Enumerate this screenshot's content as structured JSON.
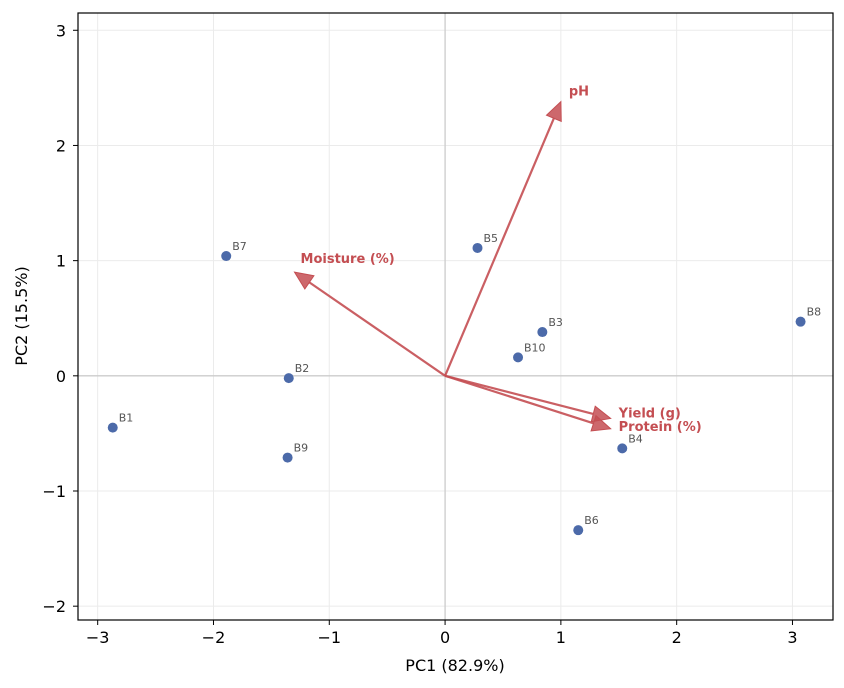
{
  "chart_data": {
    "type": "scatter",
    "title": "",
    "xlabel": "PC1 (82.9%)",
    "ylabel": "PC2 (15.5%)",
    "xlim": [
      -3.17,
      3.35
    ],
    "ylim": [
      -2.12,
      3.15
    ],
    "xticks": [
      -3,
      -2,
      -1,
      0,
      1,
      2,
      3
    ],
    "yticks": [
      -2,
      -1,
      0,
      1,
      2,
      3
    ],
    "grid": true,
    "point_color": "#4c6aa9",
    "vector_color": "#c44e52",
    "points": [
      {
        "label": "B1",
        "x": -2.87,
        "y": -0.45
      },
      {
        "label": "B2",
        "x": -1.35,
        "y": -0.02
      },
      {
        "label": "B3",
        "x": 0.84,
        "y": 0.38
      },
      {
        "label": "B4",
        "x": 1.53,
        "y": -0.63
      },
      {
        "label": "B5",
        "x": 0.28,
        "y": 1.11
      },
      {
        "label": "B6",
        "x": 1.15,
        "y": -1.34
      },
      {
        "label": "B7",
        "x": -1.89,
        "y": 1.04
      },
      {
        "label": "B8",
        "x": 3.07,
        "y": 0.47
      },
      {
        "label": "B9",
        "x": -1.36,
        "y": -0.71
      },
      {
        "label": "B10",
        "x": 0.63,
        "y": 0.16
      }
    ],
    "loadings": [
      {
        "label": "pH",
        "x": 1.0,
        "y": 2.38
      },
      {
        "label": "Moisture (%)",
        "x": -1.3,
        "y": 0.9
      },
      {
        "label": "Yield (g)",
        "x": 1.43,
        "y": -0.37
      },
      {
        "label": "Protein (%)",
        "x": 1.43,
        "y": -0.46
      }
    ],
    "xtick_labels": [
      "−3",
      "−2",
      "−1",
      "0",
      "1",
      "2",
      "3"
    ],
    "ytick_labels": [
      "−2",
      "−1",
      "0",
      "1",
      "2",
      "3"
    ]
  }
}
